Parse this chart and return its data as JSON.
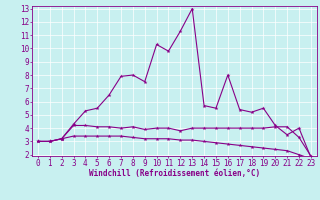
{
  "xlabel": "Windchill (Refroidissement éolien,°C)",
  "background_color": "#c8f0f0",
  "line_color": "#880088",
  "x": [
    0,
    1,
    2,
    3,
    4,
    5,
    6,
    7,
    8,
    9,
    10,
    11,
    12,
    13,
    14,
    15,
    16,
    17,
    18,
    19,
    20,
    21,
    22,
    23
  ],
  "y_main": [
    3.0,
    3.0,
    3.2,
    4.3,
    5.3,
    5.5,
    6.5,
    7.9,
    8.0,
    7.5,
    10.3,
    9.8,
    11.3,
    13.0,
    5.7,
    5.5,
    8.0,
    5.4,
    5.2,
    5.5,
    4.2,
    3.5,
    4.0,
    1.8
  ],
  "y_mid": [
    3.0,
    3.0,
    3.2,
    4.2,
    4.2,
    4.1,
    4.1,
    4.0,
    4.1,
    3.9,
    4.0,
    4.0,
    3.8,
    4.0,
    4.0,
    4.0,
    4.0,
    4.0,
    4.0,
    4.0,
    4.1,
    4.1,
    3.3,
    1.9
  ],
  "y_low": [
    3.0,
    3.0,
    3.2,
    3.4,
    3.4,
    3.4,
    3.4,
    3.4,
    3.3,
    3.2,
    3.2,
    3.2,
    3.1,
    3.1,
    3.0,
    2.9,
    2.8,
    2.7,
    2.6,
    2.5,
    2.4,
    2.3,
    2.0,
    1.7
  ],
  "ylim": [
    2,
    13
  ],
  "yticks": [
    2,
    3,
    4,
    5,
    6,
    7,
    8,
    9,
    10,
    11,
    12,
    13
  ],
  "xticks": [
    0,
    1,
    2,
    3,
    4,
    5,
    6,
    7,
    8,
    9,
    10,
    11,
    12,
    13,
    14,
    15,
    16,
    17,
    18,
    19,
    20,
    21,
    22,
    23
  ],
  "tick_fontsize": 5.5,
  "xlabel_fontsize": 5.5
}
